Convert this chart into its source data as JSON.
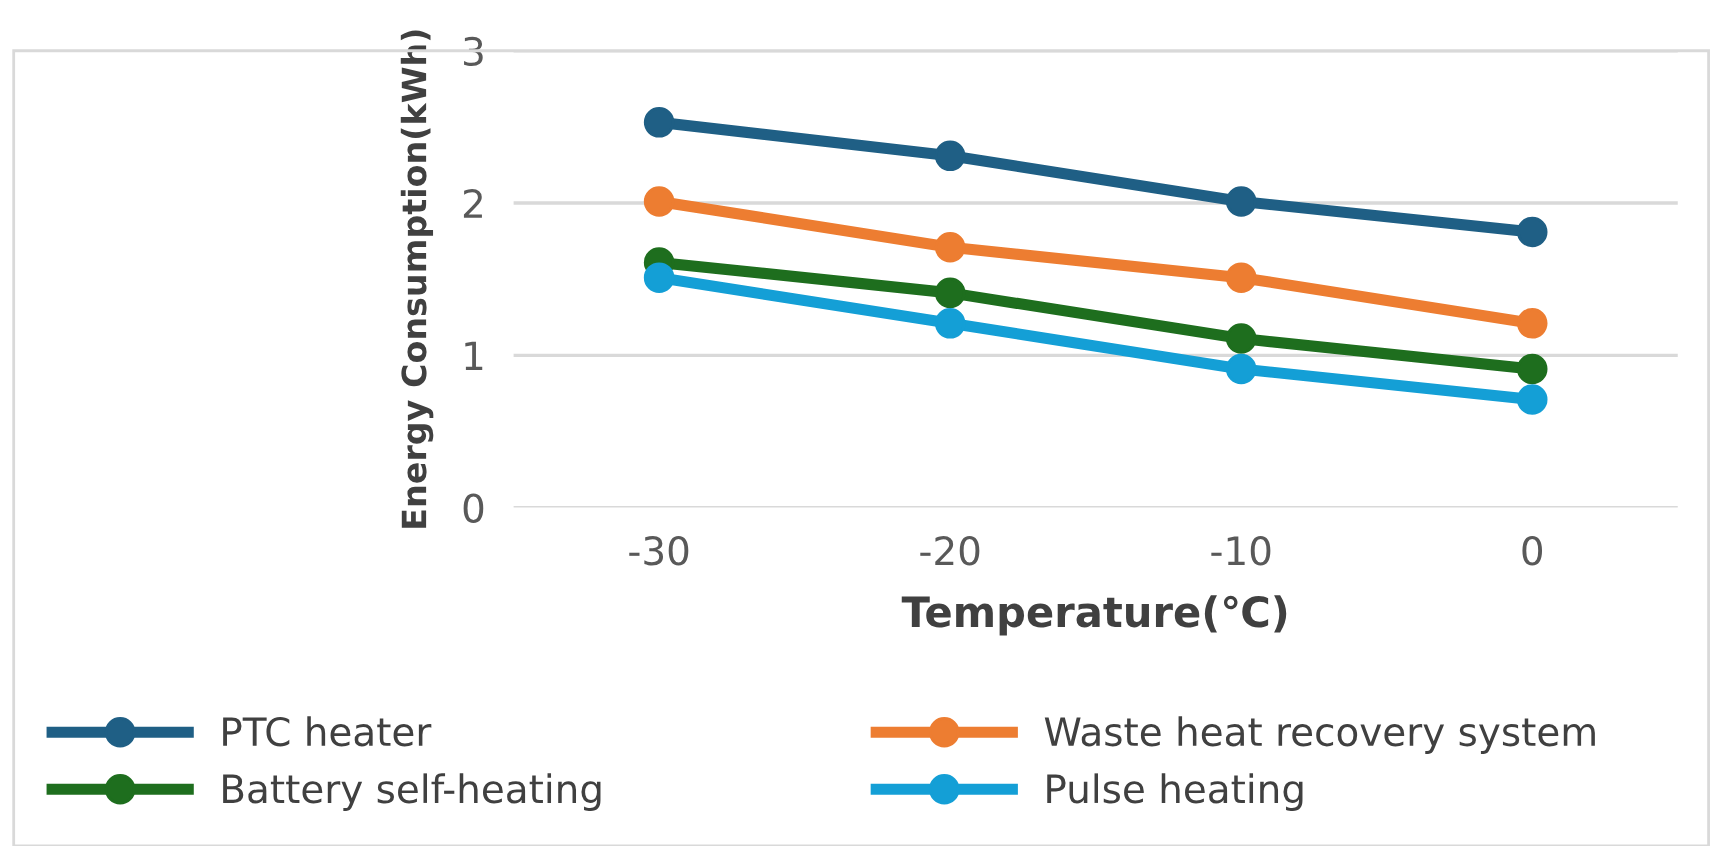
{
  "chart_data": {
    "type": "line",
    "xlabel": "Temperature(℃)",
    "ylabel": "Energy Consumption(kWh)",
    "categories": [
      "-30",
      "-20",
      "-10",
      "0"
    ],
    "series": [
      {
        "name": "PTC heater",
        "color": "#1f5f85",
        "values": [
          2.53,
          2.31,
          2.01,
          1.81
        ]
      },
      {
        "name": "Waste heat recovery system",
        "color": "#ed7d31",
        "values": [
          2.01,
          1.71,
          1.51,
          1.21
        ]
      },
      {
        "name": "Battery self-heating",
        "color": "#1e6e1e",
        "values": [
          1.61,
          1.41,
          1.11,
          0.91
        ]
      },
      {
        "name": "Pulse heating",
        "color": "#149fd6",
        "values": [
          1.51,
          1.21,
          0.91,
          0.71
        ]
      }
    ],
    "ylim": [
      0,
      3
    ],
    "yticks": [
      0,
      1,
      2,
      3
    ],
    "grid": "y",
    "legend": "bottom",
    "marker": "circle",
    "line_style": "solid"
  }
}
